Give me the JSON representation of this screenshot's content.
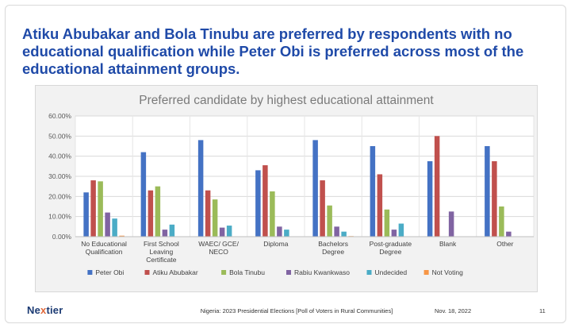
{
  "headline": "Atiku Abubakar and Bola Tinubu are preferred by respondents with no educational qualification while Peter Obi is preferred across most of the educational attainment groups.",
  "footer": {
    "logo_prefix": "Ne",
    "logo_x": "x",
    "logo_suffix": "tier",
    "source": "Nigeria: 2023 Presidential Elections [Poll of Voters in Rural Communities]",
    "date": "Nov. 18, 2022",
    "page": "11"
  },
  "chart_data": {
    "type": "bar",
    "title": "Preferred candidate by highest educational attainment",
    "categories": [
      [
        "No Educational",
        "Qualification"
      ],
      [
        "First School",
        "Leaving",
        "Certificate"
      ],
      [
        "WAEC/ GCE/",
        "NECO"
      ],
      [
        "Diploma"
      ],
      [
        "Bachelors",
        "Degree"
      ],
      [
        "Post-graduate",
        "Degree"
      ],
      [
        "Blank"
      ],
      [
        "Other"
      ]
    ],
    "ylim": [
      0,
      60
    ],
    "yticks": [
      "0.00%",
      "10.00%",
      "20.00%",
      "30.00%",
      "40.00%",
      "50.00%",
      "60.00%"
    ],
    "grid": true,
    "legend_position": "bottom",
    "series": [
      {
        "name": "Peter Obi",
        "color": "#4472c4",
        "values": [
          22,
          42,
          48,
          33,
          48,
          45,
          37.5,
          45
        ]
      },
      {
        "name": "Atiku Abubakar",
        "color": "#c0504d",
        "values": [
          28,
          23,
          23,
          35.5,
          28,
          31,
          50,
          37.5
        ]
      },
      {
        "name": "Bola Tinubu",
        "color": "#9bbb59",
        "values": [
          27.5,
          25,
          18.5,
          22.5,
          15.5,
          13.5,
          0,
          15
        ]
      },
      {
        "name": "Rabiu Kwankwaso",
        "color": "#8064a2",
        "values": [
          12,
          3.5,
          4.5,
          5,
          5,
          3.5,
          12.5,
          2.5
        ]
      },
      {
        "name": "Undecided",
        "color": "#4bacc6",
        "values": [
          9,
          6,
          5.5,
          3.5,
          2.5,
          6.5,
          0,
          0
        ]
      },
      {
        "name": "Not Voting",
        "color": "#f79646",
        "values": [
          0.5,
          0,
          0,
          0,
          0.3,
          0,
          0,
          0
        ]
      }
    ]
  }
}
